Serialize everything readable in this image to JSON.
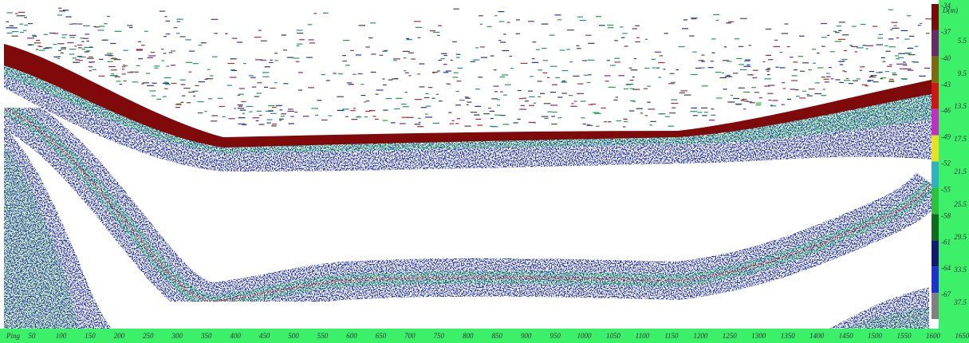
{
  "x_axis": {
    "label": "Ping",
    "ticks": [
      50,
      100,
      150,
      200,
      250,
      300,
      350,
      400,
      450,
      500,
      550,
      600,
      650,
      700,
      750,
      800,
      850,
      900,
      950,
      1000,
      1050,
      1100,
      1150,
      1200,
      1250,
      1300,
      1350,
      1400,
      1450,
      1500,
      1550,
      1600,
      1650
    ]
  },
  "color_scale": {
    "labels": [
      -34,
      -37,
      -40,
      -43,
      -46,
      -49,
      -52,
      -55,
      -58,
      -61,
      -64,
      -67
    ],
    "colors": [
      "#7a0a0a",
      "#6a2a6a",
      "#7d6a10",
      "#d01515",
      "#c030c0",
      "#e8e020",
      "#30b0c0",
      "#30c040",
      "#106a20",
      "#101a70",
      "#2030d0",
      "#808080"
    ]
  },
  "depth_axis": {
    "label": "D(m)",
    "ticks": [
      5.5,
      9.5,
      13.5,
      17.5,
      21.5,
      25.5,
      29.5,
      33.5,
      37.5
    ]
  }
}
